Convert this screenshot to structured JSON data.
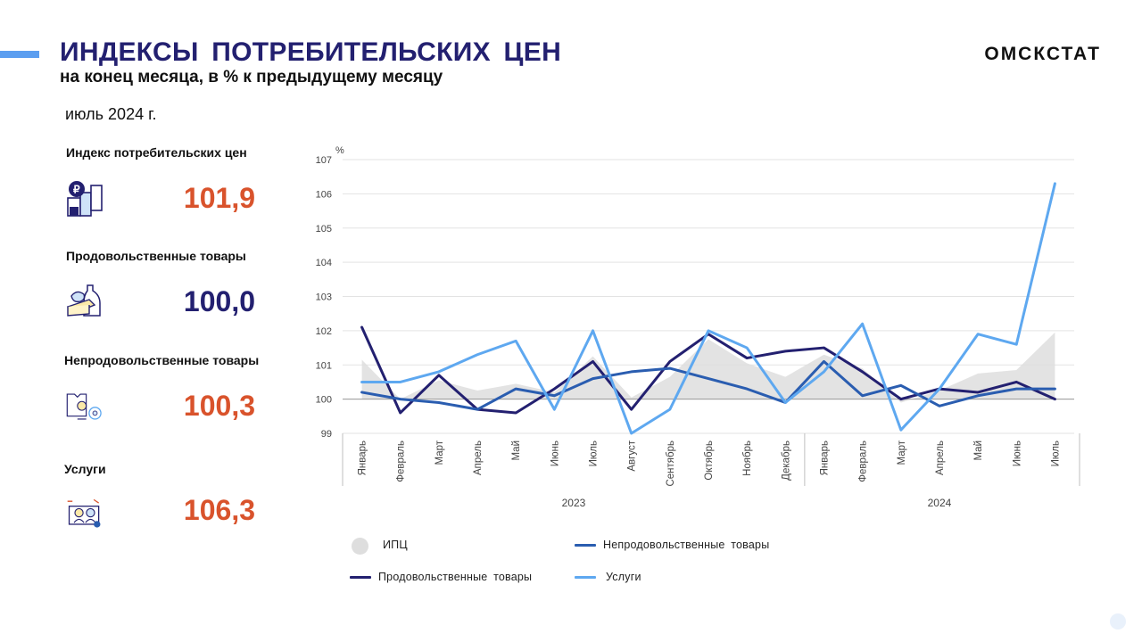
{
  "header": {
    "title": "ИНДЕКСЫ ПОТРЕБИТЕЛЬСКИХ ЦЕН",
    "subtitle": "на конец месяца, в % к предыдущему месяцу",
    "brand": "ОМСКСТАТ",
    "period": "июль 2024 г."
  },
  "kpis": [
    {
      "label": "Индекс потребительских цен",
      "value": "101,9",
      "icon": "price-index-icon",
      "color": "#d9532c"
    },
    {
      "label": "Продовольственные товары",
      "value": "100,0",
      "icon": "food-icon",
      "color": "#232070"
    },
    {
      "label": "Непродовольственные товары",
      "value": "100,3",
      "icon": "non-food-icon",
      "color": "#d9532c"
    },
    {
      "label": "Услуги",
      "value": "106,3",
      "icon": "services-icon",
      "color": "#d9532c"
    }
  ],
  "colors": {
    "title": "#232070",
    "accent": "#5b9ef0",
    "cpi_area": "#dedede",
    "food": "#232070",
    "non_food": "#2a5db0",
    "services": "#5ea8f0",
    "value_orange": "#d9532c"
  },
  "chart_data": {
    "type": "line",
    "ylabel": "%",
    "ylim": [
      99,
      107
    ],
    "yticks": [
      99,
      100,
      101,
      102,
      103,
      104,
      105,
      106,
      107
    ],
    "categories": [
      "Январь",
      "Февраль",
      "Март",
      "Апрель",
      "Май",
      "Июнь",
      "Июль",
      "Август",
      "Сентябрь",
      "Октябрь",
      "Ноябрь",
      "Декабрь",
      "Январь",
      "Февраль",
      "Март",
      "Апрель",
      "Май",
      "Июнь",
      "Июль"
    ],
    "year_groups": [
      {
        "label": "2023",
        "start": 0,
        "end": 11
      },
      {
        "label": "2024",
        "start": 12,
        "end": 18
      }
    ],
    "baseline": 100,
    "series": [
      {
        "name": "ИПЦ",
        "kind": "area",
        "color": "#dedede",
        "values": [
          101.15,
          100.0,
          100.55,
          100.25,
          100.45,
          100.2,
          101.25,
          100.05,
          100.65,
          101.75,
          101.05,
          100.65,
          101.3,
          100.9,
          99.9,
          100.25,
          100.75,
          100.85,
          101.95
        ]
      },
      {
        "name": "Продовольственные товары",
        "kind": "line",
        "color": "#232070",
        "values": [
          102.1,
          99.6,
          100.7,
          99.7,
          99.6,
          100.3,
          101.1,
          99.7,
          101.1,
          101.9,
          101.2,
          101.4,
          101.5,
          100.8,
          100.0,
          100.3,
          100.2,
          100.5,
          100.0
        ]
      },
      {
        "name": "Непродовольственные товары",
        "kind": "line",
        "color": "#2a5db0",
        "values": [
          100.2,
          100.0,
          99.9,
          99.7,
          100.3,
          100.1,
          100.6,
          100.8,
          100.9,
          100.6,
          100.3,
          99.9,
          101.1,
          100.1,
          100.4,
          99.8,
          100.1,
          100.3,
          100.3
        ]
      },
      {
        "name": "Услуги",
        "kind": "line",
        "color": "#5ea8f0",
        "values": [
          100.5,
          100.5,
          100.8,
          101.3,
          101.7,
          99.7,
          102.0,
          99.0,
          99.7,
          102.0,
          101.5,
          99.9,
          100.8,
          102.2,
          99.1,
          100.3,
          101.9,
          101.6,
          106.3
        ]
      }
    ],
    "legend": [
      "ИПЦ",
      "Непродовольственные товары",
      "Продовольственные товары",
      "Услуги"
    ]
  }
}
